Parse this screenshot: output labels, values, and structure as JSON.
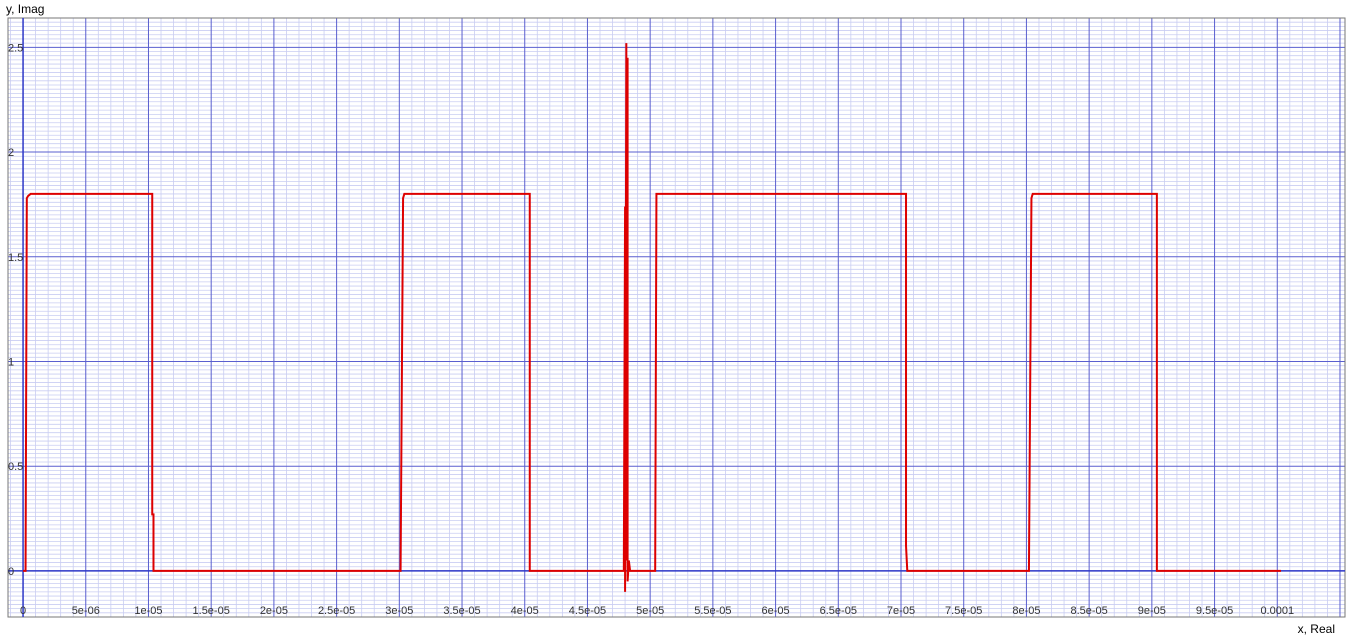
{
  "chart_data": {
    "type": "line",
    "title": "",
    "xlabel": "x, Real",
    "ylabel": "y, Imag",
    "xlim": [
      -1.2e-06,
      0.0001054
    ],
    "ylim": [
      -0.22,
      2.64
    ],
    "x_ticks": [
      0,
      5e-06,
      1e-05,
      1.5e-05,
      2e-05,
      2.5e-05,
      3e-05,
      3.5e-05,
      4e-05,
      4.5e-05,
      5e-05,
      5.5e-05,
      6e-05,
      6.5e-05,
      7e-05,
      7.5e-05,
      8e-05,
      8.5e-05,
      9e-05,
      9.5e-05,
      0.0001
    ],
    "x_tick_labels": [
      "0",
      "5e-06",
      "1e-05",
      "1.5e-05",
      "2e-05",
      "2.5e-05",
      "3e-05",
      "3.5e-05",
      "4e-05",
      "4.5e-05",
      "5e-05",
      "5.5e-05",
      "6e-05",
      "6.5e-05",
      "7e-05",
      "7.5e-05",
      "8e-05",
      "8.5e-05",
      "9e-05",
      "9.5e-05",
      "0.0001"
    ],
    "y_ticks": [
      0,
      0.5,
      1,
      1.5,
      2,
      2.5
    ],
    "y_tick_labels": [
      "0",
      "0.5",
      "1",
      "1.5",
      "2",
      "2.5"
    ],
    "grid": true,
    "colors": {
      "line": "#dd0000",
      "major_grid": "#5a5fcf",
      "minor_grid": "#c9cdf2",
      "axis": "#2f39c8",
      "frame": "#777777"
    },
    "series": [
      {
        "x": [
          0,
          2e-07,
          3e-07,
          4e-07,
          6e-07,
          1.03e-05,
          1.03e-05,
          1.04e-05,
          1.04e-05,
          3.01e-05,
          3.03e-05,
          3.04e-05,
          4.04e-05,
          4.04e-05,
          4.79e-05,
          4.8e-05,
          4.8e-05,
          4.81e-05,
          4.81e-05,
          4.82e-05,
          4.82e-05,
          4.83e-05,
          4.84e-05,
          4.85e-05,
          5.04e-05,
          5.05e-05,
          7.04e-05,
          7.04e-05,
          7.05e-05,
          8.02e-05,
          8.04e-05,
          8.05e-05,
          9.04e-05,
          9.04e-05,
          0.0001003
        ],
        "y": [
          0,
          0,
          1.78,
          1.79,
          1.8,
          1.8,
          0.27,
          0.27,
          0,
          0,
          1.78,
          1.8,
          1.8,
          0,
          0,
          1.74,
          -0.1,
          2.52,
          0.05,
          2.45,
          -0.05,
          0.05,
          0,
          0,
          0,
          1.8,
          1.8,
          0.12,
          0,
          0,
          1.78,
          1.8,
          1.8,
          0,
          0
        ]
      }
    ]
  }
}
